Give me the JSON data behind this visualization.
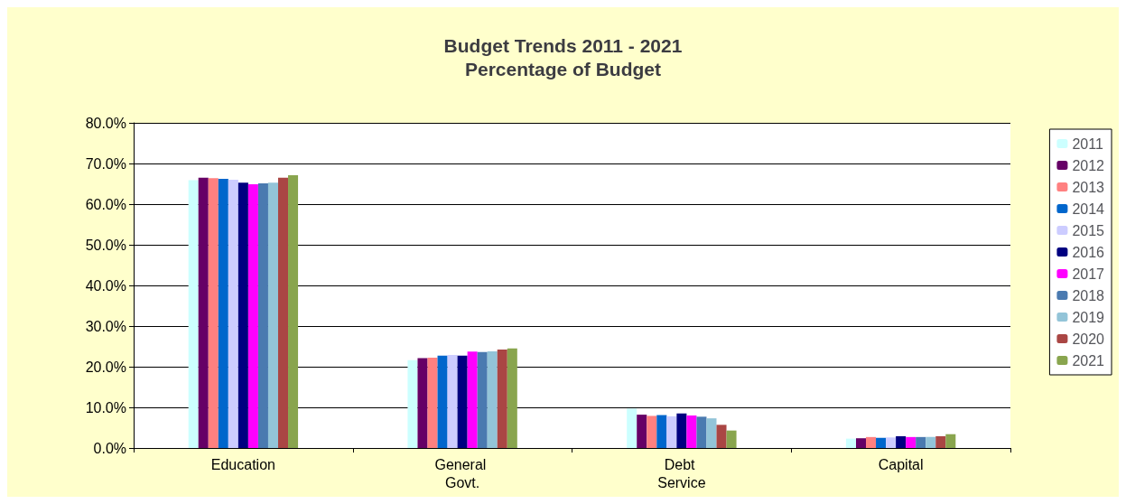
{
  "chart_data": {
    "type": "bar",
    "title": "Budget Trends 2011 - 2021\nPercentage of Budget",
    "categories": [
      "Education",
      "General Govt.",
      "Debt Service",
      "Capital"
    ],
    "series": [
      {
        "name": "2011",
        "color": "#ccffff",
        "values": [
          65.9,
          21.6,
          9.7,
          2.3
        ]
      },
      {
        "name": "2012",
        "color": "#660066",
        "values": [
          66.5,
          22.1,
          8.2,
          2.4
        ]
      },
      {
        "name": "2013",
        "color": "#ff8080",
        "values": [
          66.4,
          22.2,
          7.9,
          2.7
        ]
      },
      {
        "name": "2014",
        "color": "#0066cc",
        "values": [
          66.2,
          22.7,
          8.1,
          2.5
        ]
      },
      {
        "name": "2015",
        "color": "#ccccff",
        "values": [
          66.0,
          22.9,
          7.8,
          2.6
        ]
      },
      {
        "name": "2016",
        "color": "#000080",
        "values": [
          65.3,
          22.7,
          8.5,
          2.9
        ]
      },
      {
        "name": "2017",
        "color": "#ff00ff",
        "values": [
          64.9,
          23.7,
          8.0,
          2.7
        ]
      },
      {
        "name": "2018",
        "color": "#4a7ab0",
        "values": [
          65.1,
          23.6,
          7.7,
          2.7
        ]
      },
      {
        "name": "2019",
        "color": "#93c4d8",
        "values": [
          65.3,
          23.8,
          7.3,
          2.7
        ]
      },
      {
        "name": "2020",
        "color": "#aa4644",
        "values": [
          66.5,
          24.2,
          5.7,
          2.9
        ]
      },
      {
        "name": "2021",
        "color": "#89a54e",
        "values": [
          67.1,
          24.5,
          4.3,
          3.4
        ]
      }
    ],
    "ylim": [
      0,
      80
    ],
    "yticks": [
      {
        "value": 0,
        "label": "0.0%"
      },
      {
        "value": 10,
        "label": "10.0%"
      },
      {
        "value": 20,
        "label": "20.0%"
      },
      {
        "value": 30,
        "label": "30.0%"
      },
      {
        "value": 40,
        "label": "40.0%"
      },
      {
        "value": 50,
        "label": "50.0%"
      },
      {
        "value": 60,
        "label": "60.0%"
      },
      {
        "value": 70,
        "label": "70.0%"
      },
      {
        "value": 80,
        "label": "80.0%"
      }
    ],
    "grid": "y",
    "legend": "right"
  }
}
